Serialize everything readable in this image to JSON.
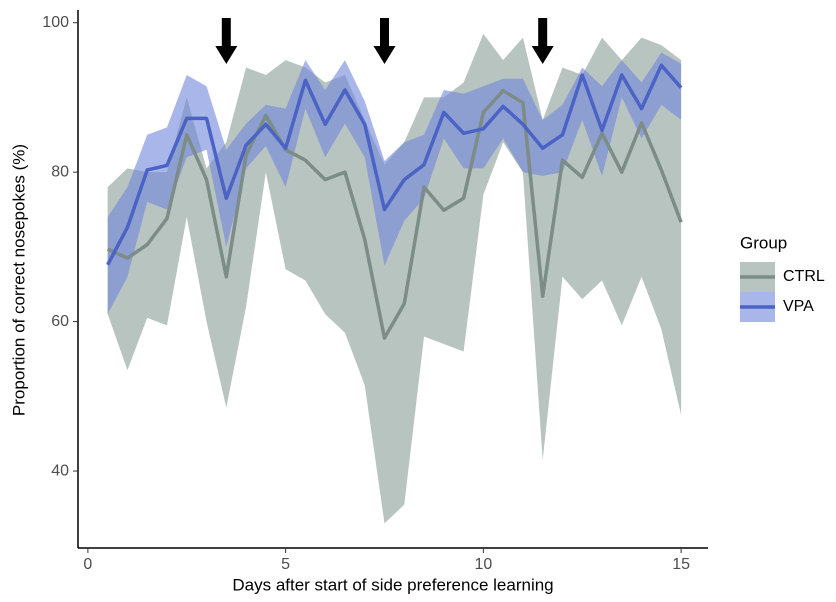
{
  "chart_data": {
    "type": "line",
    "x_label": "Days after start of side preference learning",
    "y_label": "Proportion of correct nosepokes (%)",
    "x": [
      0.5,
      1,
      1.5,
      2,
      2.5,
      3,
      3.5,
      4,
      4.5,
      5,
      5.5,
      6,
      6.5,
      7,
      7.5,
      8,
      8.5,
      9,
      9.5,
      10,
      10.5,
      11,
      11.5,
      12,
      12.5,
      13,
      13.5,
      14,
      14.5,
      15
    ],
    "series": [
      {
        "name": "CTRL",
        "color": "#7c8c86",
        "fill": "#a6b5b0",
        "values": [
          69.7,
          68.5,
          70.3,
          73.8,
          85,
          79,
          66,
          82.3,
          87.6,
          83,
          81.6,
          79,
          80,
          71,
          57.8,
          62.4,
          78,
          74.9,
          76.5,
          88,
          90.9,
          89.3,
          63.4,
          81.6,
          79.3,
          85.2,
          80,
          86.6,
          80.3,
          73.3
        ],
        "upper": [
          78,
          80.5,
          80,
          80,
          90,
          80.5,
          84,
          94,
          93,
          95,
          94,
          92,
          93,
          87,
          81,
          84,
          90,
          90,
          92,
          98.5,
          95,
          98,
          87,
          94,
          93,
          98,
          95,
          98,
          97,
          95
        ],
        "lower": [
          61,
          53.5,
          60.5,
          59.5,
          74,
          60,
          48.5,
          62,
          80,
          67,
          65.5,
          61,
          58.5,
          51.5,
          33,
          35.5,
          58,
          57,
          56,
          77,
          84,
          80,
          41.5,
          66,
          63,
          65.5,
          59.5,
          66,
          59,
          47.5
        ]
      },
      {
        "name": "VPA",
        "color": "#4a63c4",
        "fill": "#6f86db",
        "values": [
          67.6,
          72.6,
          80.3,
          80.9,
          87.2,
          87.2,
          76.5,
          83.6,
          86.4,
          83.2,
          92.3,
          86.4,
          91,
          86.4,
          75,
          79,
          81,
          88,
          85.2,
          85.8,
          88.8,
          86.4,
          83.2,
          85,
          93,
          85.6,
          93,
          88.5,
          94.3,
          91.3
        ],
        "upper": [
          74,
          78,
          85,
          86,
          93,
          91.5,
          83,
          86.5,
          89,
          88.5,
          95,
          91,
          95,
          89.5,
          81.5,
          84,
          85,
          91,
          90.5,
          91.5,
          92.5,
          92.5,
          87,
          89,
          94,
          91.5,
          95,
          92,
          96,
          94.5
        ],
        "lower": [
          61,
          66,
          76,
          75,
          82,
          83,
          70,
          80.5,
          83.5,
          78,
          88.5,
          82,
          86.5,
          82,
          67.5,
          73.5,
          76.5,
          84.5,
          80.5,
          80.5,
          84.5,
          80,
          79.5,
          80,
          87,
          79.5,
          90,
          84.5,
          89,
          87
        ]
      }
    ],
    "arrows": [
      3.5,
      7.5,
      11.5
    ],
    "xlim": [
      -0.25,
      15.68
    ],
    "ylim": [
      29.7,
      101.7
    ],
    "xticks": [
      0,
      5,
      10,
      15
    ],
    "yticks": [
      40,
      60,
      80,
      100
    ],
    "legend_title": "Group",
    "legend": "right"
  }
}
